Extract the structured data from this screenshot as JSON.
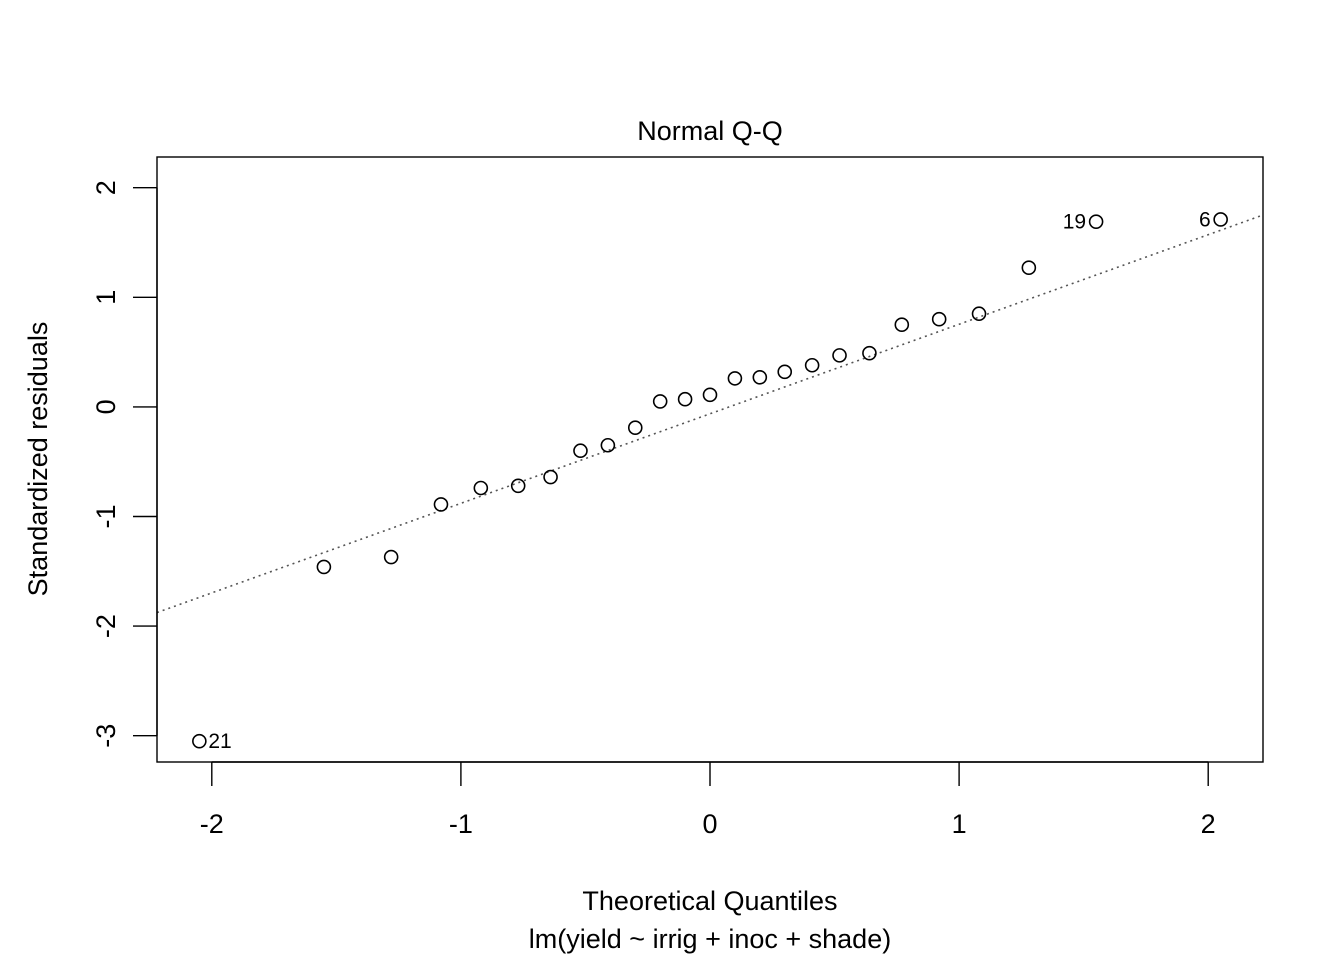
{
  "chart_data": {
    "type": "scatter",
    "title": "Normal Q-Q",
    "xlabel": "Theoretical Quantiles",
    "subtitle": "lm(yield ~ irrig + inoc + shade)",
    "ylabel": "Standardized residuals",
    "xlim": [
      -2.22,
      2.22
    ],
    "ylim": [
      -3.24,
      2.28
    ],
    "x_ticks": [
      {
        "value": -2,
        "label": "-2"
      },
      {
        "value": -1,
        "label": "-1"
      },
      {
        "value": 0,
        "label": "0"
      },
      {
        "value": 1,
        "label": "1"
      },
      {
        "value": 2,
        "label": "2"
      }
    ],
    "y_ticks": [
      {
        "value": -3,
        "label": "-3"
      },
      {
        "value": -2,
        "label": "-2"
      },
      {
        "value": -1,
        "label": "-1"
      },
      {
        "value": 0,
        "label": "0"
      },
      {
        "value": 1,
        "label": "1"
      },
      {
        "value": 2,
        "label": "2"
      }
    ],
    "points": [
      {
        "x": -2.05,
        "y": -3.05,
        "label": "21"
      },
      {
        "x": -1.55,
        "y": -1.46
      },
      {
        "x": -1.28,
        "y": -1.37
      },
      {
        "x": -1.08,
        "y": -0.89
      },
      {
        "x": -0.92,
        "y": -0.74
      },
      {
        "x": -0.77,
        "y": -0.72
      },
      {
        "x": -0.64,
        "y": -0.64
      },
      {
        "x": -0.52,
        "y": -0.4
      },
      {
        "x": -0.41,
        "y": -0.35
      },
      {
        "x": -0.3,
        "y": -0.19
      },
      {
        "x": -0.2,
        "y": 0.05
      },
      {
        "x": -0.1,
        "y": 0.07
      },
      {
        "x": 0.0,
        "y": 0.11
      },
      {
        "x": 0.1,
        "y": 0.26
      },
      {
        "x": 0.2,
        "y": 0.27
      },
      {
        "x": 0.3,
        "y": 0.32
      },
      {
        "x": 0.41,
        "y": 0.38
      },
      {
        "x": 0.52,
        "y": 0.47
      },
      {
        "x": 0.64,
        "y": 0.49
      },
      {
        "x": 0.77,
        "y": 0.75
      },
      {
        "x": 0.92,
        "y": 0.8
      },
      {
        "x": 1.08,
        "y": 0.85
      },
      {
        "x": 1.28,
        "y": 1.27
      },
      {
        "x": 1.55,
        "y": 1.69,
        "label": "19"
      },
      {
        "x": 2.05,
        "y": 1.71,
        "label": "6"
      }
    ],
    "reference_line": {
      "intercept": -0.063,
      "slope": 0.817,
      "style": "dotted",
      "color": "#555555"
    },
    "grid": false,
    "point_color": "#000000"
  }
}
